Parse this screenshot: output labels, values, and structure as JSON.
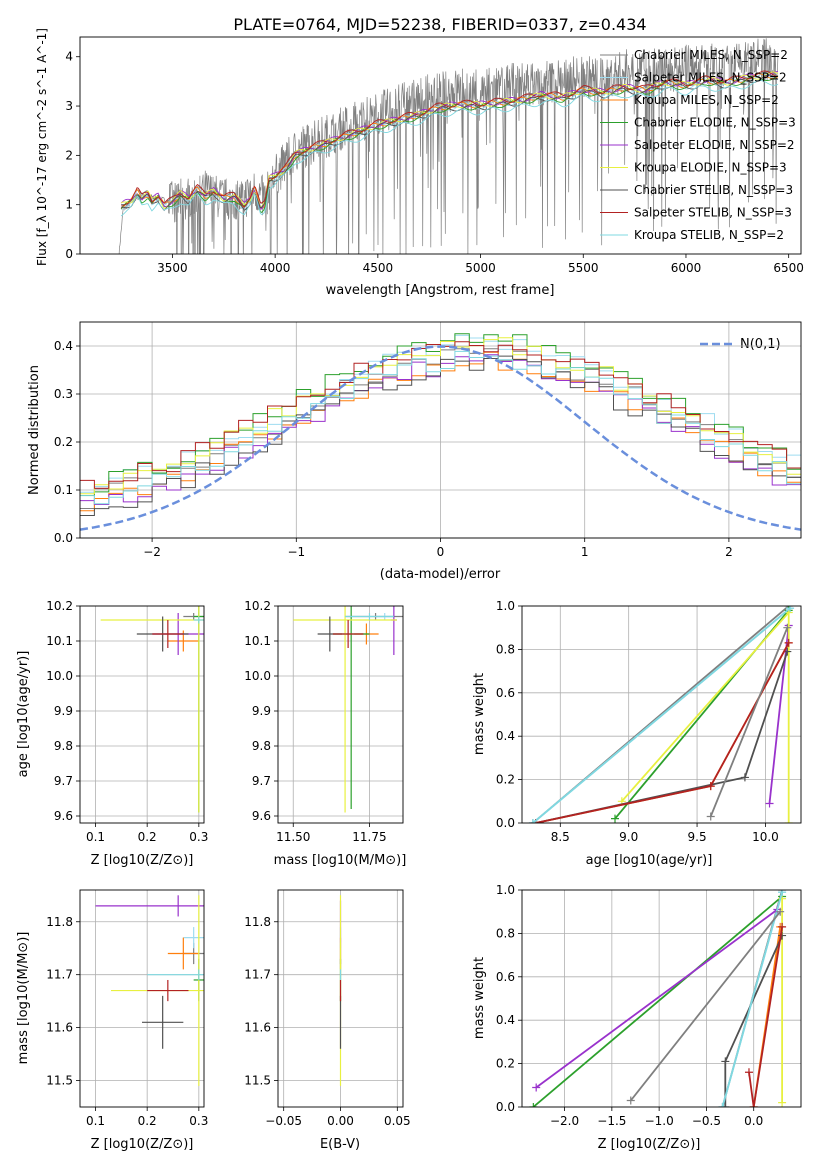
{
  "figure_title": "PLATE=0764, MJD=52238, FIBERID=0337, z=0.434",
  "model_colors": [
    "#7f7f7f",
    "#9fdcf0",
    "#ff7f0e",
    "#2ca02c",
    "#9932cc",
    "#e8f040",
    "#505050",
    "#b22222",
    "#7fd8e0"
  ],
  "chart_data": [
    {
      "id": "spectrum",
      "type": "line",
      "title": "PLATE=0764, MJD=52238, FIBERID=0337, z=0.434",
      "xlabel": "wavelength [Angstrom, rest frame]",
      "ylabel": "Flux [f_λ 10^-17 erg cm^-2 s^-1 A^-1]",
      "xlim": [
        3050,
        6560
      ],
      "ylim": [
        0,
        4.4
      ],
      "xticks": [
        3500,
        4000,
        4500,
        5000,
        5500,
        6000,
        6500
      ],
      "yticks": [
        0,
        1,
        2,
        3,
        4
      ],
      "grid": false,
      "legend_position": "top-right",
      "data_series": {
        "name": "data",
        "x": [
          3240,
          3260,
          3300,
          3350,
          3400,
          3450,
          3500,
          3550,
          3600,
          3650,
          3700,
          3750,
          3800,
          3850,
          3900,
          3950,
          4000,
          4100,
          4200,
          4300,
          4400,
          4500,
          4600,
          4700,
          4800,
          4900,
          5000,
          5100,
          5200,
          5300,
          5400,
          5500,
          5600,
          5700,
          5800,
          5900,
          6000,
          6100,
          6200,
          6300,
          6400,
          6450
        ],
        "y": [
          0,
          0.9,
          1.05,
          1.2,
          1.15,
          1.1,
          1.05,
          1.1,
          1.2,
          1.3,
          1.2,
          1.1,
          1.1,
          1.15,
          1.3,
          1.1,
          1.6,
          2.1,
          2.3,
          2.5,
          2.7,
          2.85,
          3.0,
          3.15,
          3.25,
          3.35,
          3.3,
          3.4,
          3.45,
          3.45,
          3.55,
          3.6,
          3.55,
          3.7,
          3.75,
          3.7,
          3.8,
          3.85,
          3.8,
          3.9,
          3.95,
          3.9
        ],
        "noise_from": 3480,
        "noise_amplitude": 0.9
      },
      "model_x": [
        3250,
        3270,
        3300,
        3330,
        3350,
        3380,
        3400,
        3430,
        3460,
        3500,
        3540,
        3580,
        3620,
        3660,
        3700,
        3750,
        3800,
        3850,
        3880,
        3900,
        3930,
        3950,
        3970,
        4000,
        4050,
        4100,
        4200,
        4300,
        4400,
        4500,
        4600,
        4700,
        4800,
        4900,
        5000,
        5100,
        5200,
        5300,
        5400,
        5500,
        5600,
        5700,
        5800,
        5900,
        6000,
        6100,
        6200,
        6300,
        6400,
        6450
      ],
      "model_y": [
        0.95,
        1.0,
        1.05,
        1.25,
        1.1,
        1.2,
        1.05,
        1.15,
        0.95,
        1.05,
        1.2,
        1.1,
        1.3,
        1.15,
        1.25,
        1.1,
        1.15,
        0.95,
        1.1,
        1.3,
        0.9,
        1.0,
        1.5,
        1.55,
        1.7,
        2.0,
        2.15,
        2.3,
        2.45,
        2.6,
        2.7,
        2.8,
        2.95,
        3.0,
        3.0,
        3.05,
        3.1,
        3.2,
        3.15,
        3.3,
        3.25,
        3.35,
        3.3,
        3.45,
        3.4,
        3.5,
        3.45,
        3.55,
        3.6,
        3.6
      ],
      "model_offsets": [
        0.05,
        0.0,
        0.02,
        -0.02,
        0.04,
        0.03,
        -0.03,
        0.06,
        -0.12
      ],
      "series_names": [
        "Chabrier MILES, N_SSP=2",
        "Salpeter MILES, N_SSP=2",
        "Kroupa MILES, N_SSP=2",
        "Chabrier ELODIE, N_SSP=3",
        "Salpeter ELODIE, N_SSP=2",
        "Kroupa ELODIE, N_SSP=3",
        "Chabrier STELIB, N_SSP=3",
        "Salpeter STELIB, N_SSP=3",
        "Kroupa STELIB, N_SSP=2"
      ]
    },
    {
      "id": "residuals",
      "type": "line",
      "xlabel": "(data-model)/error",
      "ylabel": "Normed distribution",
      "xlim": [
        -2.5,
        2.5
      ],
      "ylim": [
        0,
        0.45
      ],
      "xticks": [
        -2,
        -1,
        0,
        1,
        2
      ],
      "yticks": [
        0.0,
        0.1,
        0.2,
        0.3,
        0.4
      ],
      "grid": true,
      "legend_position": "top-right",
      "reference_curve": {
        "name": "N(0,1)",
        "mean": 0,
        "sigma": 1,
        "color": "#6a8fdc"
      },
      "hist_edges_start": -2.5,
      "hist_bin_width": 0.1,
      "hist_shape": {
        "center": 0.3,
        "sigma": 1.3,
        "peak": 0.33
      },
      "hist_jitter": [
        0.0,
        0.02,
        -0.015,
        0.025,
        -0.02,
        0.015,
        -0.025,
        0.02,
        -0.01
      ]
    },
    {
      "id": "age-vs-Z",
      "type": "scatter",
      "xlabel": "Z [log10(Z/Z⊙)]",
      "ylabel": "age  [log10(age/yr)]",
      "xlim": [
        0.07,
        0.31
      ],
      "ylim": [
        9.58,
        10.2
      ],
      "xticks": [
        0.1,
        0.2,
        0.3
      ],
      "yticks": [
        9.6,
        9.7,
        9.8,
        9.9,
        10.0,
        10.1,
        10.2
      ],
      "grid": true,
      "points": [
        {
          "x": 0.29,
          "y": 10.17,
          "xerr": 0.02,
          "yerr": 0.01
        },
        {
          "x": 0.3,
          "y": 10.17,
          "xerr": 0.01,
          "yerr": 0.01
        },
        {
          "x": 0.27,
          "y": 10.1,
          "xerr": 0.03,
          "yerr": 0.03
        },
        {
          "x": 0.3,
          "y": 10.17,
          "xerr": 0.01,
          "yerr": 0.56
        },
        {
          "x": 0.26,
          "y": 10.12,
          "xerr": 0.05,
          "yerr": 0.06
        },
        {
          "x": 0.3,
          "y": 10.16,
          "xerr": 0.19,
          "yerr": 0.55
        },
        {
          "x": 0.23,
          "y": 10.12,
          "xerr": 0.05,
          "yerr": 0.05
        },
        {
          "x": 0.24,
          "y": 10.12,
          "xerr": 0.03,
          "yerr": 0.04
        },
        {
          "x": 0.3,
          "y": 10.16,
          "xerr": 0.01,
          "yerr": 0.01
        }
      ]
    },
    {
      "id": "age-vs-mass",
      "type": "scatter",
      "xlabel": "mass [log10(M/M⊙)]",
      "ylabel": "",
      "xlim": [
        11.45,
        11.86
      ],
      "ylim": [
        9.58,
        10.2
      ],
      "xticks": [
        11.5,
        11.75
      ],
      "yticks": [
        9.6,
        9.7,
        9.8,
        9.9,
        10.0,
        10.1,
        10.2
      ],
      "grid": true,
      "points": [
        {
          "x": 11.77,
          "y": 10.17,
          "xerr": 0.1,
          "yerr": 0.01
        },
        {
          "x": 11.8,
          "y": 10.17,
          "xerr": 0.03,
          "yerr": 0.01
        },
        {
          "x": 11.74,
          "y": 10.12,
          "xerr": 0.04,
          "yerr": 0.03
        },
        {
          "x": 11.69,
          "y": 10.12,
          "xerr": 0.06,
          "yerr": 0.5
        },
        {
          "x": 11.83,
          "y": 10.16,
          "xerr": 0.01,
          "yerr": 0.1
        },
        {
          "x": 11.67,
          "y": 10.16,
          "xerr": 0.17,
          "yerr": 0.55
        },
        {
          "x": 11.62,
          "y": 10.12,
          "xerr": 0.04,
          "yerr": 0.05
        },
        {
          "x": 11.68,
          "y": 10.12,
          "xerr": 0.05,
          "yerr": 0.04
        },
        {
          "x": 11.75,
          "y": 10.17,
          "xerr": 0.08,
          "yerr": 0.01
        }
      ]
    },
    {
      "id": "weight-vs-age",
      "type": "line",
      "xlabel": "age  [log10(age/yr)]",
      "ylabel": "mass weight",
      "xlim": [
        8.22,
        10.26
      ],
      "ylim": [
        0,
        1.0
      ],
      "xticks": [
        8.5,
        9.0,
        9.5,
        10.0
      ],
      "yticks": [
        0.0,
        0.2,
        0.4,
        0.6,
        0.8,
        1.0
      ],
      "grid": true,
      "series": [
        {
          "x": [
            8.3,
            10.17
          ],
          "y": [
            0.0,
            1.0
          ]
        },
        {
          "x": [
            8.3,
            10.18
          ],
          "y": [
            0.0,
            0.99
          ]
        },
        {
          "x": [
            8.32,
            9.6,
            10.17
          ],
          "y": [
            0.0,
            0.17,
            0.83
          ]
        },
        {
          "x": [
            8.9,
            10.17
          ],
          "y": [
            0.02,
            0.98
          ]
        },
        {
          "x": [
            10.03,
            10.17
          ],
          "y": [
            0.09,
            0.91
          ]
        },
        {
          "x": [
            8.95,
            10.17,
            10.17
          ],
          "y": [
            0.1,
            0.97,
            0.0
          ]
        },
        {
          "x": [
            8.32,
            9.85,
            10.16
          ],
          "y": [
            0.0,
            0.21,
            0.79
          ]
        },
        {
          "x": [
            8.32,
            9.6,
            10.17
          ],
          "y": [
            0.0,
            0.17,
            0.83
          ]
        },
        {
          "x": [
            8.3,
            10.18
          ],
          "y": [
            0.0,
            0.99
          ]
        },
        {
          "x": [
            9.6,
            10.16
          ],
          "y": [
            0.03,
            0.9
          ]
        }
      ]
    },
    {
      "id": "mass-vs-Z",
      "type": "scatter",
      "xlabel": "Z [log10(Z/Z⊙)]",
      "ylabel": "mass [log10(M/M⊙)]",
      "xlim": [
        0.07,
        0.31
      ],
      "ylim": [
        11.45,
        11.86
      ],
      "xticks": [
        0.1,
        0.2,
        0.3
      ],
      "yticks": [
        11.5,
        11.6,
        11.7,
        11.8
      ],
      "grid": true,
      "points": [
        {
          "x": 0.29,
          "y": 11.74,
          "xerr": 0.02,
          "yerr": 0.02
        },
        {
          "x": 0.29,
          "y": 11.77,
          "xerr": 0.02,
          "yerr": 0.02
        },
        {
          "x": 0.27,
          "y": 11.74,
          "xerr": 0.03,
          "yerr": 0.03
        },
        {
          "x": 0.3,
          "y": 11.69,
          "xerr": 0.01,
          "yerr": 0.04
        },
        {
          "x": 0.26,
          "y": 11.83,
          "xerr": 0.16,
          "yerr": 0.02
        },
        {
          "x": 0.3,
          "y": 11.67,
          "xerr": 0.17,
          "yerr": 0.18
        },
        {
          "x": 0.23,
          "y": 11.61,
          "xerr": 0.04,
          "yerr": 0.05
        },
        {
          "x": 0.24,
          "y": 11.67,
          "xerr": 0.04,
          "yerr": 0.02
        },
        {
          "x": 0.3,
          "y": 11.7,
          "xerr": 0.1,
          "yerr": 0.01
        }
      ]
    },
    {
      "id": "mass-vs-ebv",
      "type": "scatter",
      "xlabel": "E(B-V)",
      "ylabel": "",
      "xlim": [
        -0.055,
        0.055
      ],
      "ylim": [
        11.45,
        11.86
      ],
      "xticks": [
        -0.05,
        0.0,
        0.05
      ],
      "yticks": [
        11.5,
        11.6,
        11.7,
        11.8
      ],
      "grid": true,
      "points": [
        {
          "x": 0.0,
          "y": 11.74,
          "xerr": 0.0,
          "yerr": 0.02
        },
        {
          "x": 0.0,
          "y": 11.77,
          "xerr": 0.0,
          "yerr": 0.02
        },
        {
          "x": 0.0,
          "y": 11.74,
          "xerr": 0.0,
          "yerr": 0.03
        },
        {
          "x": 0.0,
          "y": 11.69,
          "xerr": 0.0,
          "yerr": 0.04
        },
        {
          "x": 0.0,
          "y": 11.8,
          "xerr": 0.0,
          "yerr": 0.04
        },
        {
          "x": 0.0,
          "y": 11.67,
          "xerr": 0.0,
          "yerr": 0.18
        },
        {
          "x": 0.0,
          "y": 11.61,
          "xerr": 0.0,
          "yerr": 0.05
        },
        {
          "x": 0.0,
          "y": 11.67,
          "xerr": 0.0,
          "yerr": 0.02
        },
        {
          "x": 0.0,
          "y": 11.7,
          "xerr": 0.0,
          "yerr": 0.01
        }
      ]
    },
    {
      "id": "weight-vs-Z",
      "type": "line",
      "xlabel": "Z [log10(Z/Z⊙)]",
      "ylabel": "mass weight",
      "xlim": [
        -2.45,
        0.5
      ],
      "ylim": [
        0,
        1.0
      ],
      "xticks": [
        -2.0,
        -1.5,
        -1.0,
        -0.5,
        0.0
      ],
      "yticks": [
        0.0,
        0.2,
        0.4,
        0.6,
        0.8,
        1.0
      ],
      "grid": true,
      "series": [
        {
          "x": [
            -0.33,
            0.3
          ],
          "y": [
            0.0,
            1.0
          ]
        },
        {
          "x": [
            -0.33,
            0.3
          ],
          "y": [
            0.0,
            0.99
          ]
        },
        {
          "x": [
            0.0,
            0.28
          ],
          "y": [
            0.0,
            0.83
          ]
        },
        {
          "x": [
            -2.33,
            0.3
          ],
          "y": [
            0.0,
            0.97
          ]
        },
        {
          "x": [
            -2.3,
            0.25
          ],
          "y": [
            0.09,
            0.91
          ]
        },
        {
          "x": [
            0.3,
            0.3
          ],
          "y": [
            0.02,
            0.96
          ]
        },
        {
          "x": [
            -0.3,
            -0.3,
            0.3
          ],
          "y": [
            0.0,
            0.21,
            0.79
          ]
        },
        {
          "x": [
            -0.05,
            0.0,
            0.3
          ],
          "y": [
            0.16,
            0.0,
            0.83
          ]
        },
        {
          "x": [
            -0.33,
            0.3
          ],
          "y": [
            0.0,
            0.99
          ]
        },
        {
          "x": [
            -1.3,
            0.28
          ],
          "y": [
            0.03,
            0.9
          ]
        }
      ]
    }
  ]
}
